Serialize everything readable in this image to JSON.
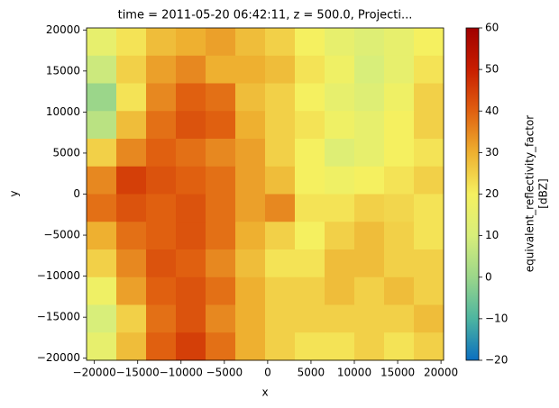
{
  "chart_data": {
    "type": "heatmap",
    "title": "time = 2011-05-20 06:42:11, z = 500.0, Projecti...",
    "xlabel": "x",
    "ylabel": "y",
    "colorbar_label": [
      "equivalent_reflectivity_factor",
      "[dBZ]"
    ],
    "xlim": [
      -20900,
      20300
    ],
    "ylim": [
      -20250,
      20250
    ],
    "xticks": [
      {
        "value": -20000,
        "label": "−20000"
      },
      {
        "value": -15000,
        "label": "−15000"
      },
      {
        "value": -10000,
        "label": "−10000"
      },
      {
        "value": -5000,
        "label": "−5000"
      },
      0,
      5000,
      10000,
      15000,
      20000
    ],
    "yticks": [
      {
        "value": -20000,
        "label": "−20000"
      },
      {
        "value": -15000,
        "label": "−15000"
      },
      {
        "value": -10000,
        "label": "−10000"
      },
      {
        "value": -5000,
        "label": "−5000"
      },
      0,
      5000,
      10000,
      15000,
      20000
    ],
    "x": [
      -19183,
      -15750,
      -12317,
      -8883,
      -5450,
      -2017,
      1417,
      4850,
      8283,
      11717,
      15150,
      18583
    ],
    "y": [
      18562.5,
      15187.5,
      11812.5,
      8437.5,
      5062.5,
      1687.5,
      -1687.5,
      -5062.5,
      -8437.5,
      -11812.5,
      -15187.5,
      -18562.5
    ],
    "z": [
      [
        15,
        22,
        28,
        30,
        32,
        28,
        25,
        20,
        15,
        12,
        15,
        20
      ],
      [
        8,
        25,
        32,
        35,
        30,
        30,
        28,
        22,
        18,
        10,
        15,
        22
      ],
      [
        0,
        22,
        35,
        40,
        38,
        28,
        25,
        20,
        15,
        12,
        18,
        25
      ],
      [
        5,
        28,
        38,
        42,
        40,
        30,
        25,
        22,
        18,
        15,
        20,
        25
      ],
      [
        25,
        35,
        40,
        38,
        35,
        32,
        25,
        20,
        12,
        15,
        20,
        22
      ],
      [
        35,
        45,
        42,
        40,
        38,
        32,
        28,
        20,
        18,
        20,
        22,
        25
      ],
      [
        38,
        42,
        40,
        42,
        38,
        32,
        35,
        22,
        22,
        25,
        24,
        22
      ],
      [
        30,
        38,
        40,
        42,
        38,
        30,
        25,
        20,
        25,
        28,
        25,
        22
      ],
      [
        25,
        35,
        42,
        40,
        35,
        28,
        22,
        22,
        28,
        28,
        25,
        25
      ],
      [
        18,
        32,
        40,
        42,
        38,
        30,
        25,
        25,
        28,
        25,
        28,
        25
      ],
      [
        10,
        25,
        38,
        42,
        35,
        30,
        25,
        25,
        25,
        25,
        25,
        28
      ],
      [
        15,
        28,
        40,
        45,
        38,
        30,
        25,
        22,
        22,
        25,
        22,
        25
      ]
    ],
    "clim": [
      -20,
      60
    ],
    "cticks": [
      {
        "value": -20,
        "label": "−20"
      },
      {
        "value": -10,
        "label": "−10"
      },
      0,
      10,
      20,
      30,
      40,
      50,
      60
    ],
    "colormap": [
      "#0b6fc0",
      "#4db5a0",
      "#9bd68a",
      "#d8ee7a",
      "#f5f060",
      "#eeb030",
      "#e06010",
      "#c81e00",
      "#a00000"
    ]
  }
}
